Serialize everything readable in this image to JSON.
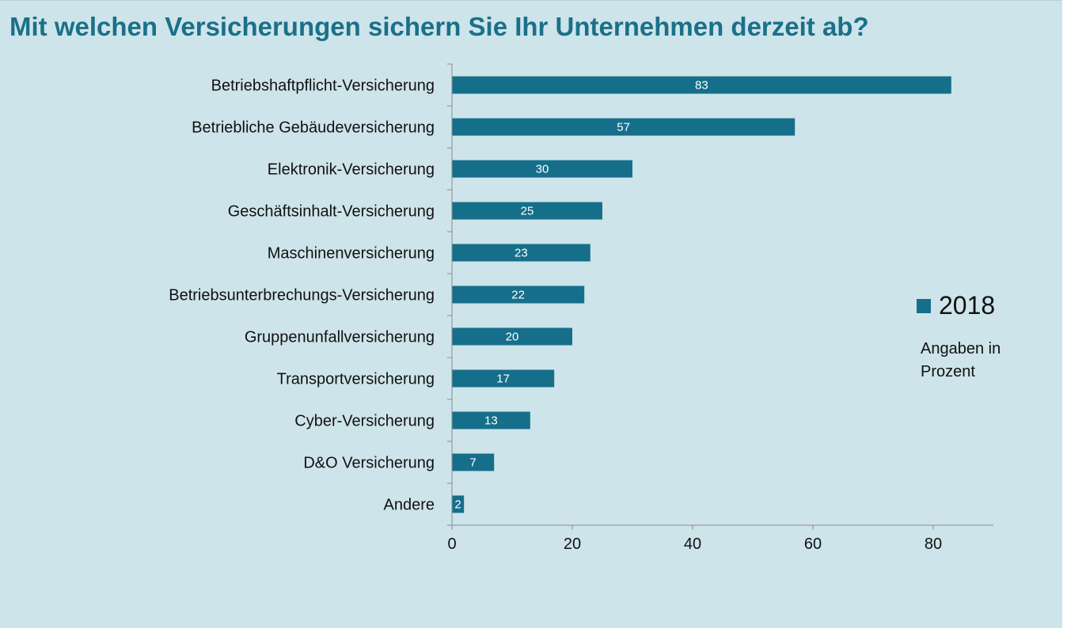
{
  "chart_data": {
    "type": "bar",
    "orientation": "horizontal",
    "title": "Mit welchen Versicherungen sichern Sie Ihr Unternehmen derzeit ab?",
    "categories": [
      "Betriebshaftpflicht-Versicherung",
      "Betriebliche Gebäudeversicherung",
      "Elektronik-Versicherung",
      "Geschäftsinhalt-Versicherung",
      "Maschinenversicherung",
      "Betriebsunterbrechungs-Versicherung",
      "Gruppenunfallversicherung",
      "Transportversicherung",
      "Cyber-Versicherung",
      "D&O Versicherung",
      "Andere"
    ],
    "series": [
      {
        "name": "2018",
        "values": [
          83,
          57,
          30,
          25,
          23,
          22,
          20,
          17,
          13,
          7,
          2
        ],
        "color": "#166f8a"
      }
    ],
    "xlim": [
      0,
      90
    ],
    "xticks": [
      0,
      20,
      40,
      60,
      80
    ],
    "xtick_labels": [
      "0",
      "20",
      "40",
      "60",
      "80"
    ],
    "note": "Angaben in Prozent",
    "legend_position": "right",
    "grid": false,
    "bar_label_color": "#ffffff",
    "axis_color": "#8c8c8c",
    "background_color": "#cde4ea",
    "title_color": "#1b7089"
  }
}
